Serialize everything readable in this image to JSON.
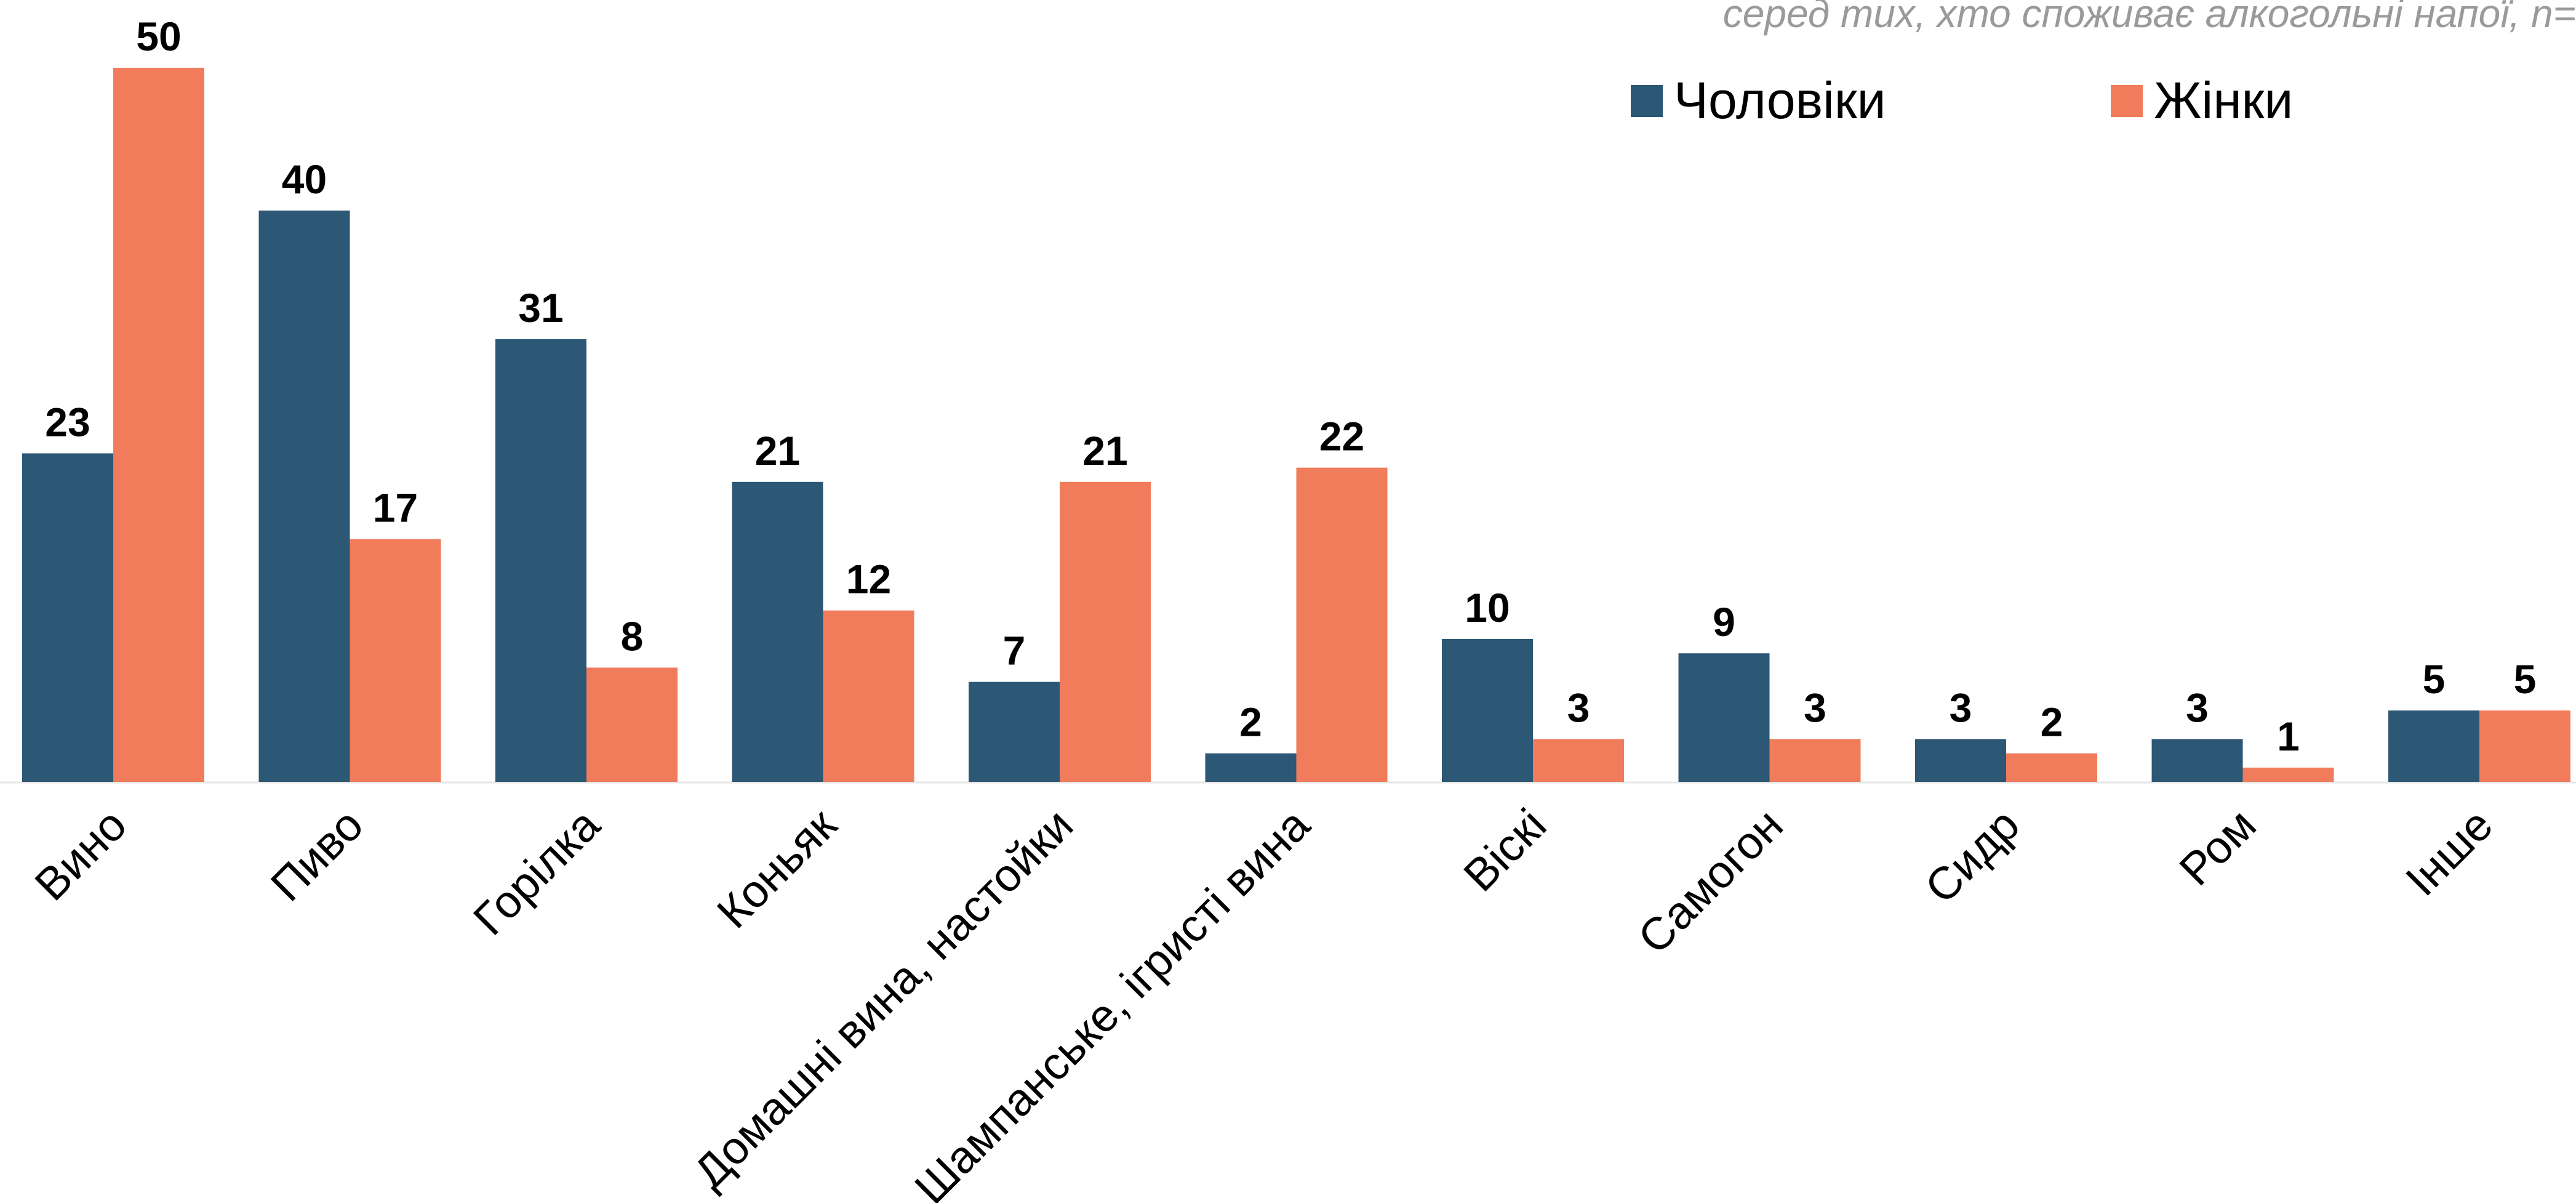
{
  "chart_data": {
    "type": "bar",
    "subtitle": "серед тих, хто споживає алкогольні напої, n=",
    "categories": [
      "Вино",
      "Пиво",
      "Горілка",
      "Коньяк",
      "Домашні вина, настойки",
      "Шампанське, ігристі вина",
      "Віскі",
      "Самогон",
      "Сидр",
      "Ром",
      "Інше"
    ],
    "series": [
      {
        "name": "Чоловіки",
        "color": "#2c5775",
        "values": [
          23,
          40,
          31,
          21,
          7,
          2,
          10,
          9,
          3,
          3,
          5
        ]
      },
      {
        "name": "Жінки",
        "color": "#f07c5c",
        "values": [
          50,
          17,
          8,
          12,
          21,
          22,
          3,
          3,
          2,
          1,
          5
        ]
      }
    ],
    "ylim": [
      0,
      50
    ],
    "grid": false,
    "legend_position": "top-right"
  }
}
